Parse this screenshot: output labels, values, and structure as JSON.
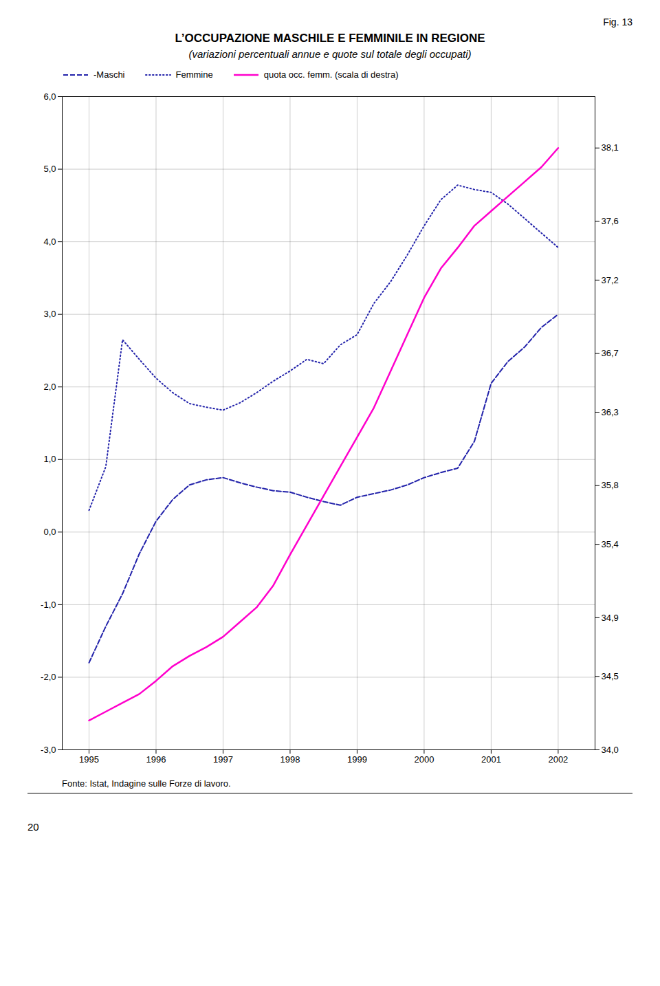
{
  "chart_data": {
    "type": "line",
    "title": "L’OCCUPAZIONE MASCHILE E FEMMINILE IN REGIONE",
    "subtitle": "(variazioni percentuali annue e quote sul totale degli occupati)",
    "annotations": [
      "Fig. 13",
      "Fonte: Istat, Indagine sulle Forze di lavoro.",
      "20"
    ],
    "x": [
      1995.0,
      1995.25,
      1995.5,
      1995.75,
      1996.0,
      1996.25,
      1996.5,
      1996.75,
      1997.0,
      1997.25,
      1997.5,
      1997.75,
      1998.0,
      1998.25,
      1998.5,
      1998.75,
      1999.0,
      1999.25,
      1999.5,
      1999.75,
      2000.0,
      2000.25,
      2000.5,
      2000.75,
      2001.0,
      2001.25,
      2001.5,
      2001.75,
      2002.0
    ],
    "series": [
      {
        "name": "-Maschi",
        "color": "#2222aa",
        "line_style": "dashed",
        "values": [
          -1.8,
          -1.3,
          -0.85,
          -0.3,
          0.15,
          0.45,
          0.65,
          0.72,
          0.75,
          0.68,
          0.62,
          0.57,
          0.55,
          0.48,
          0.42,
          0.37,
          0.48,
          0.53,
          0.58,
          0.65,
          0.75,
          0.82,
          0.88,
          1.25,
          2.05,
          2.35,
          2.55,
          2.82,
          3.0
        ]
      },
      {
        "name": "Femmine",
        "color": "#2222aa",
        "line_style": "dotted",
        "values": [
          0.3,
          0.9,
          2.65,
          2.38,
          2.12,
          1.92,
          1.77,
          1.72,
          1.68,
          1.78,
          1.92,
          2.08,
          2.22,
          2.38,
          2.32,
          2.58,
          2.72,
          3.15,
          3.45,
          3.82,
          4.22,
          4.58,
          4.78,
          4.72,
          4.68,
          4.52,
          4.32,
          4.12,
          3.92
        ]
      },
      {
        "name": "quota occ. femm. (scala di destra)",
        "color": "#ff00cc",
        "line_style": "solid",
        "axis": "y2",
        "values": [
          34.2,
          34.26,
          34.32,
          34.38,
          34.47,
          34.57,
          34.64,
          34.7,
          34.77,
          34.87,
          34.97,
          35.12,
          35.33,
          35.53,
          35.73,
          35.93,
          36.13,
          36.33,
          36.58,
          36.83,
          37.08,
          37.28,
          37.42,
          37.57,
          37.67,
          37.77,
          37.87,
          37.97,
          38.1
        ]
      }
    ],
    "xlim": [
      1994.6,
      2002.55
    ],
    "xticks": [
      1995,
      1996,
      1997,
      1998,
      1999,
      2000,
      2001,
      2002
    ],
    "ylim": [
      -3.0,
      6.0
    ],
    "yticks": [
      {
        "value": -3.0,
        "label": "-3,0"
      },
      {
        "value": -2.0,
        "label": "-2,0"
      },
      {
        "value": -1.0,
        "label": "-1,0"
      },
      {
        "value": 0.0,
        "label": "0,0"
      },
      {
        "value": 1.0,
        "label": "1,0"
      },
      {
        "value": 2.0,
        "label": "2,0"
      },
      {
        "value": 3.0,
        "label": "3,0"
      },
      {
        "value": 4.0,
        "label": "4,0"
      },
      {
        "value": 5.0,
        "label": "5,0"
      },
      {
        "value": 6.0,
        "label": "6,0"
      }
    ],
    "y2lim": [
      34.0,
      38.45
    ],
    "y2ticks": [
      {
        "value": 34.0,
        "label": "34,0"
      },
      {
        "value": 34.5,
        "label": "34,5"
      },
      {
        "value": 34.9,
        "label": "34,9"
      },
      {
        "value": 35.4,
        "label": "35,4"
      },
      {
        "value": 35.8,
        "label": "35,8"
      },
      {
        "value": 36.3,
        "label": "36,3"
      },
      {
        "value": 36.7,
        "label": "36,7"
      },
      {
        "value": 37.2,
        "label": "37,2"
      },
      {
        "value": 37.6,
        "label": "37,6"
      },
      {
        "value": 38.1,
        "label": "38,1"
      }
    ],
    "grid": true,
    "legend": "upper left"
  }
}
